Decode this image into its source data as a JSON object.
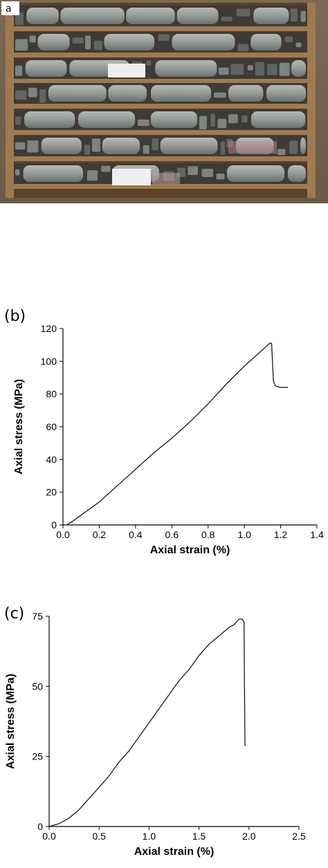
{
  "panels": {
    "a": {
      "label": "a"
    },
    "b": {
      "label": "(b)"
    },
    "c": {
      "label": "(c)"
    }
  },
  "colors": {
    "tray_wood": "#a07a4e",
    "tray_shadow": "#5a4128",
    "core_gray": "#8d9390",
    "line": "#1a1a1a"
  },
  "chart_data": [
    {
      "type": "line",
      "panel": "b",
      "xlabel": "Axial strain (%)",
      "ylabel": "Axial stress (MPa)",
      "xlim": [
        0.0,
        1.4
      ],
      "ylim": [
        0,
        120
      ],
      "xticks": [
        0.0,
        0.2,
        0.4,
        0.6,
        0.8,
        1.0,
        1.2,
        1.4
      ],
      "yticks": [
        0,
        20,
        40,
        60,
        80,
        100,
        120
      ],
      "xtick_labels": [
        "0.0",
        "0.2",
        "0.4",
        "0.6",
        "0.8",
        "1.0",
        "1.2",
        "1.4"
      ],
      "ytick_labels": [
        "0",
        "20",
        "40",
        "60",
        "80",
        "100",
        "120"
      ],
      "series": [
        {
          "x": [
            0.02,
            0.05,
            0.1,
            0.15,
            0.2,
            0.3,
            0.4,
            0.5,
            0.6,
            0.7,
            0.8,
            0.9,
            1.0,
            1.05,
            1.1,
            1.14,
            1.15,
            1.16,
            1.17,
            1.2,
            1.24
          ],
          "y": [
            0,
            2,
            6,
            10,
            14,
            24,
            34,
            44,
            53,
            63,
            74,
            86,
            97,
            102,
            107,
            111,
            111,
            88,
            85,
            84,
            84
          ]
        }
      ]
    },
    {
      "type": "line",
      "panel": "c",
      "xlabel": "Axial strain (%)",
      "ylabel": "Axial stress (MPa)",
      "xlim": [
        0.0,
        2.5
      ],
      "ylim": [
        0,
        75
      ],
      "xticks": [
        0.0,
        0.5,
        1.0,
        1.5,
        2.0,
        2.5
      ],
      "yticks": [
        0,
        25,
        50,
        75
      ],
      "xtick_labels": [
        "0.0",
        "0.5",
        "1.0",
        "1.5",
        "2.0",
        "2.5"
      ],
      "ytick_labels": [
        "0",
        "25",
        "50",
        "75"
      ],
      "series": [
        {
          "x": [
            0.0,
            0.1,
            0.2,
            0.3,
            0.4,
            0.5,
            0.6,
            0.7,
            0.8,
            0.9,
            1.0,
            1.1,
            1.2,
            1.3,
            1.4,
            1.5,
            1.6,
            1.7,
            1.8,
            1.85,
            1.9,
            1.93,
            1.95,
            1.96,
            1.97
          ],
          "y": [
            0,
            1,
            3,
            6,
            10,
            14,
            18,
            23,
            27,
            32,
            37,
            42,
            47,
            52,
            56,
            61,
            65,
            68,
            71,
            72,
            74,
            74,
            73,
            29,
            29
          ]
        }
      ]
    }
  ]
}
